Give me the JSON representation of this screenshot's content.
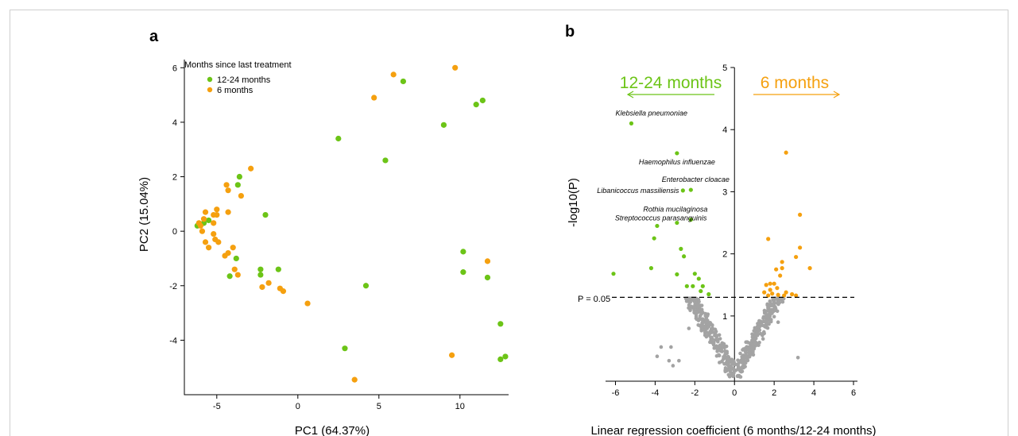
{
  "colors": {
    "green": "#6cc417",
    "orange": "#f5a00f",
    "grey": "#a3a3a3"
  },
  "panel_a": {
    "label": "a",
    "legend_title": "Months since last treatment",
    "legend_items": [
      "12-24 months",
      "6 months"
    ]
  },
  "panel_b": {
    "label": "b",
    "left_arrow_label": "12-24 months",
    "right_arrow_label": "6 months",
    "threshold_label": "P = 0.05"
  },
  "chart_data": [
    {
      "type": "scatter",
      "xlabel": "PC1 (64.37%)",
      "ylabel": "PC2 (15.04%)",
      "xlim": [
        -7,
        13
      ],
      "ylim": [
        -6,
        6.3
      ],
      "xticks": [
        -5,
        0,
        5,
        10
      ],
      "yticks": [
        -4,
        -2,
        0,
        2,
        4,
        6
      ],
      "grid": false,
      "legend_position": "top-left",
      "series": [
        {
          "name": "12-24 months",
          "color": "green",
          "points": [
            [
              6.5,
              5.5
            ],
            [
              11.4,
              4.8
            ],
            [
              11.0,
              4.65
            ],
            [
              9.0,
              3.9
            ],
            [
              2.5,
              3.4
            ],
            [
              5.4,
              2.6
            ],
            [
              -3.6,
              2.0
            ],
            [
              -3.7,
              1.7
            ],
            [
              -2.0,
              0.6
            ],
            [
              -6.2,
              0.2
            ],
            [
              -5.8,
              0.3
            ],
            [
              -5.5,
              0.4
            ],
            [
              -3.8,
              -1.0
            ],
            [
              -2.3,
              -1.4
            ],
            [
              -1.2,
              -1.4
            ],
            [
              -2.3,
              -1.6
            ],
            [
              -4.2,
              -1.65
            ],
            [
              4.2,
              -2.0
            ],
            [
              10.2,
              -0.75
            ],
            [
              10.2,
              -1.5
            ],
            [
              11.7,
              -1.7
            ],
            [
              12.5,
              -3.4
            ],
            [
              12.5,
              -4.7
            ],
            [
              12.8,
              -4.6
            ],
            [
              2.9,
              -4.3
            ]
          ]
        },
        {
          "name": "6 months",
          "color": "orange",
          "points": [
            [
              9.7,
              6.0
            ],
            [
              5.9,
              5.75
            ],
            [
              4.7,
              4.9
            ],
            [
              -2.9,
              2.3
            ],
            [
              -3.5,
              1.3
            ],
            [
              -4.4,
              1.7
            ],
            [
              -4.3,
              1.5
            ],
            [
              -5.0,
              0.8
            ],
            [
              -5.0,
              0.6
            ],
            [
              -5.2,
              0.6
            ],
            [
              -5.7,
              0.7
            ],
            [
              -4.3,
              0.7
            ],
            [
              -5.8,
              0.45
            ],
            [
              -6.1,
              0.3
            ],
            [
              -6.0,
              0.2
            ],
            [
              -5.9,
              0.0
            ],
            [
              -5.2,
              0.3
            ],
            [
              -5.1,
              -0.3
            ],
            [
              -5.2,
              -0.1
            ],
            [
              -4.9,
              -0.4
            ],
            [
              -5.7,
              -0.4
            ],
            [
              -5.5,
              -0.6
            ],
            [
              -4.0,
              -0.6
            ],
            [
              -4.3,
              -0.8
            ],
            [
              -4.5,
              -0.9
            ],
            [
              -3.9,
              -1.4
            ],
            [
              -3.7,
              -1.6
            ],
            [
              -2.2,
              -2.05
            ],
            [
              -1.8,
              -1.9
            ],
            [
              -1.1,
              -2.1
            ],
            [
              -0.9,
              -2.2
            ],
            [
              0.6,
              -2.65
            ],
            [
              11.7,
              -1.1
            ],
            [
              9.5,
              -4.55
            ],
            [
              3.5,
              -5.45
            ]
          ]
        }
      ]
    },
    {
      "type": "scatter",
      "xlabel": "Linear regression coefficient (6 months/12-24 months)",
      "ylabel": "-log10(P)",
      "xlim": [
        -6.5,
        6.2
      ],
      "ylim": [
        -0.05,
        5
      ],
      "xticks": [
        -6,
        -4,
        -2,
        0,
        2,
        4,
        6
      ],
      "yticks": [
        1,
        2,
        3,
        4,
        5
      ],
      "threshold_y": 1.3,
      "grid": false,
      "series": [
        {
          "name": "12-24 months",
          "color": "green",
          "points": [
            [
              -5.2,
              4.1
            ],
            [
              -2.9,
              3.62
            ],
            [
              -2.2,
              3.03
            ],
            [
              -2.6,
              3.02
            ],
            [
              -2.2,
              2.55
            ],
            [
              -2.9,
              2.5
            ],
            [
              -3.9,
              2.45
            ],
            [
              -4.05,
              2.25
            ],
            [
              -2.7,
              2.08
            ],
            [
              -2.55,
              1.96
            ],
            [
              -4.2,
              1.77
            ],
            [
              -2.9,
              1.67
            ],
            [
              -2.0,
              1.68
            ],
            [
              -1.8,
              1.6
            ],
            [
              -6.1,
              1.68
            ],
            [
              -2.4,
              1.48
            ],
            [
              -2.1,
              1.48
            ],
            [
              -1.6,
              1.48
            ],
            [
              -1.7,
              1.4
            ],
            [
              -1.3,
              1.35
            ]
          ]
        },
        {
          "name": "6 months",
          "color": "orange",
          "points": [
            [
              2.6,
              3.63
            ],
            [
              3.3,
              2.63
            ],
            [
              1.7,
              2.24
            ],
            [
              3.3,
              2.1
            ],
            [
              3.1,
              1.95
            ],
            [
              2.4,
              1.87
            ],
            [
              2.1,
              1.75
            ],
            [
              2.4,
              1.77
            ],
            [
              3.8,
              1.77
            ],
            [
              2.3,
              1.65
            ],
            [
              1.8,
              1.52
            ],
            [
              2.0,
              1.52
            ],
            [
              1.6,
              1.5
            ],
            [
              2.15,
              1.45
            ],
            [
              1.8,
              1.42
            ],
            [
              1.5,
              1.38
            ],
            [
              2.6,
              1.38
            ],
            [
              2.9,
              1.35
            ],
            [
              1.7,
              1.33
            ],
            [
              2.2,
              1.34
            ],
            [
              2.5,
              1.33
            ],
            [
              1.9,
              1.36
            ],
            [
              3.1,
              1.33
            ]
          ]
        }
      ],
      "annotations": [
        {
          "text": "Klebsiella pneumoniae",
          "x": -5.2,
          "y": 4.1
        },
        {
          "text": "Haemophilus influenzae",
          "x": -2.9,
          "y": 3.62
        },
        {
          "text": "Enterobacter cloacae",
          "x": -2.2,
          "y": 3.03
        },
        {
          "text": "Libanicoccus massiliensis",
          "x": -2.6,
          "y": 3.02
        },
        {
          "text": "Rothia mucilaginosa",
          "x": -2.2,
          "y": 2.55
        },
        {
          "text": "Streptococcus parasanguinis",
          "x": -2.9,
          "y": 2.5
        }
      ]
    }
  ]
}
